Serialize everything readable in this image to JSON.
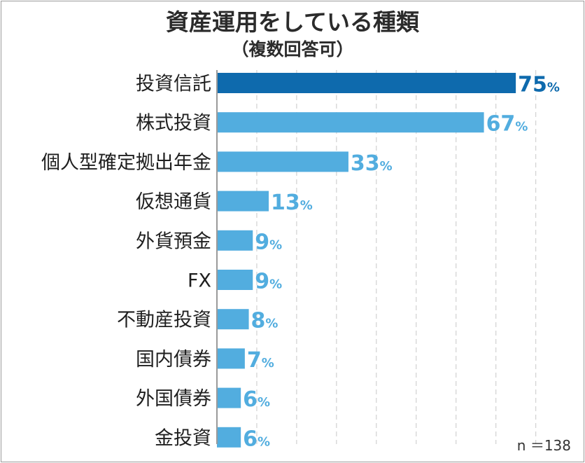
{
  "chart_data": {
    "type": "bar",
    "orientation": "horizontal",
    "title": "資産運用をしている種類",
    "subtitle": "（複数回答可）",
    "categories": [
      "投資信託",
      "株式投資",
      "個人型確定拠出年金",
      "仮想通貨",
      "外貨預金",
      "FX",
      "不動産投資",
      "国内債券",
      "外国債券",
      "金投資"
    ],
    "values": [
      75,
      67,
      33,
      13,
      9,
      9,
      8,
      7,
      6,
      6
    ],
    "unit": "%",
    "xlim": [
      0,
      100
    ],
    "grid": true,
    "highlight_index": 0,
    "note": "n ＝138"
  },
  "colors": {
    "highlight": "#0e6aad",
    "bar": "#52addf",
    "grid": "#d4d4d4",
    "axis": "#9a9a9a"
  }
}
